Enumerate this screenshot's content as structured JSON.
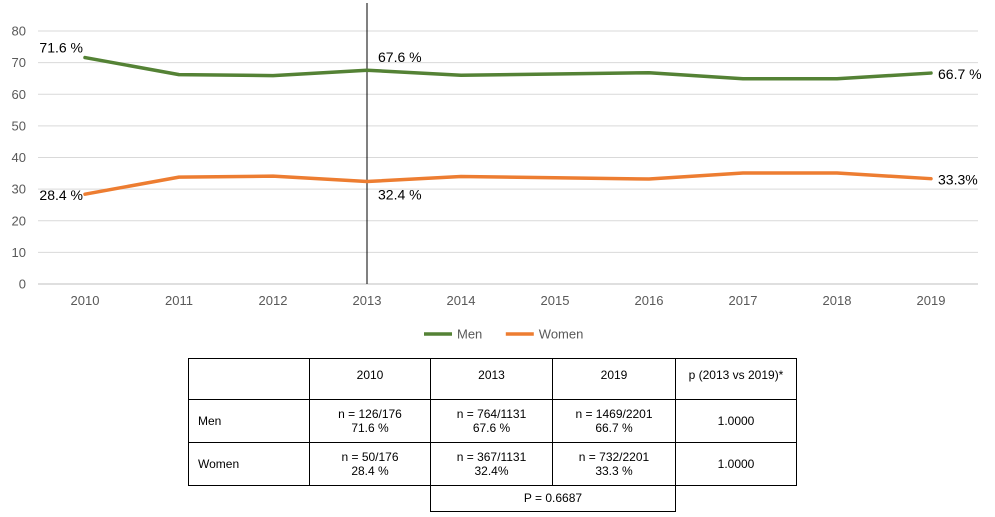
{
  "chart_data": {
    "type": "line",
    "title": "",
    "xlabel": "",
    "ylabel": "",
    "ylim": [
      0,
      80
    ],
    "yticks": [
      0,
      10,
      20,
      30,
      40,
      50,
      60,
      70,
      80
    ],
    "grid": true,
    "legend_position": "bottom",
    "categories": [
      "2010",
      "2011",
      "2012",
      "2013",
      "2014",
      "2015",
      "2016",
      "2017",
      "2018",
      "2019"
    ],
    "series": [
      {
        "name": "Men",
        "color": "#548235",
        "values": [
          71.6,
          66.2,
          65.9,
          67.6,
          66.0,
          66.4,
          66.8,
          64.9,
          64.9,
          66.7
        ]
      },
      {
        "name": "Women",
        "color": "#ED7D31",
        "values": [
          28.4,
          33.8,
          34.1,
          32.4,
          34.0,
          33.6,
          33.2,
          35.1,
          35.1,
          33.3
        ]
      }
    ],
    "annotations": [
      {
        "series": 0,
        "index": 0,
        "text": "71.6 %"
      },
      {
        "series": 0,
        "index": 3,
        "text": "67.6 %"
      },
      {
        "series": 0,
        "index": 9,
        "text": "66.7 %"
      },
      {
        "series": 1,
        "index": 0,
        "text": "28.4 %"
      },
      {
        "series": 1,
        "index": 3,
        "text": "32.4 %"
      },
      {
        "series": 1,
        "index": 9,
        "text": "33.3%"
      }
    ],
    "reference_line_category": "2013"
  },
  "table": {
    "header": [
      "",
      "2010",
      "2013",
      "2019",
      "p (2013 vs 2019)*"
    ],
    "rows": [
      {
        "label": "Men",
        "cells": [
          {
            "n": "n = 126/176",
            "pct": "71.6 %"
          },
          {
            "n": "n = 764/1131",
            "pct": "67.6 %"
          },
          {
            "n": "n = 1469/2201",
            "pct": "66.7 %"
          }
        ],
        "p": "1.0000"
      },
      {
        "label": "Women",
        "cells": [
          {
            "n": "n = 50/176",
            "pct": "28.4 %"
          },
          {
            "n": "n = 367/1131",
            "pct": "32.4%"
          },
          {
            "n": "n = 732/2201",
            "pct": "33.3 %"
          }
        ],
        "p": "1.0000"
      }
    ],
    "overall_p": "P = 0.6687"
  }
}
